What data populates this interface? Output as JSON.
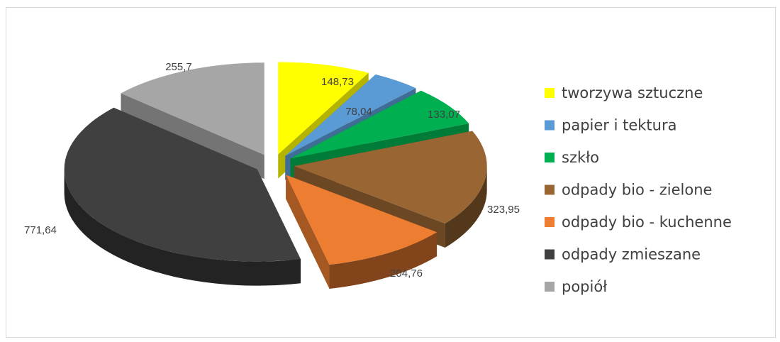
{
  "chart_data": {
    "type": "pie",
    "style": "3d-exploded",
    "title": "",
    "legend_position": "right",
    "categories": [
      "tworzywa sztuczne",
      "papier i tektura",
      "szkło",
      "odpady bio - zielone",
      "odpady bio - kuchenne",
      "odpady zmieszane",
      "popiół"
    ],
    "values": [
      148.73,
      78.04,
      133.07,
      323.95,
      204.76,
      771.64,
      255.7
    ],
    "data_labels": [
      "148,73",
      "78,04",
      "133,07",
      "323,95",
      "204,76",
      "771,64",
      "255,7"
    ],
    "colors": [
      "#ffff00",
      "#5b9bd5",
      "#00b050",
      "#996633",
      "#ed7d31",
      "#404040",
      "#a6a6a6"
    ]
  }
}
